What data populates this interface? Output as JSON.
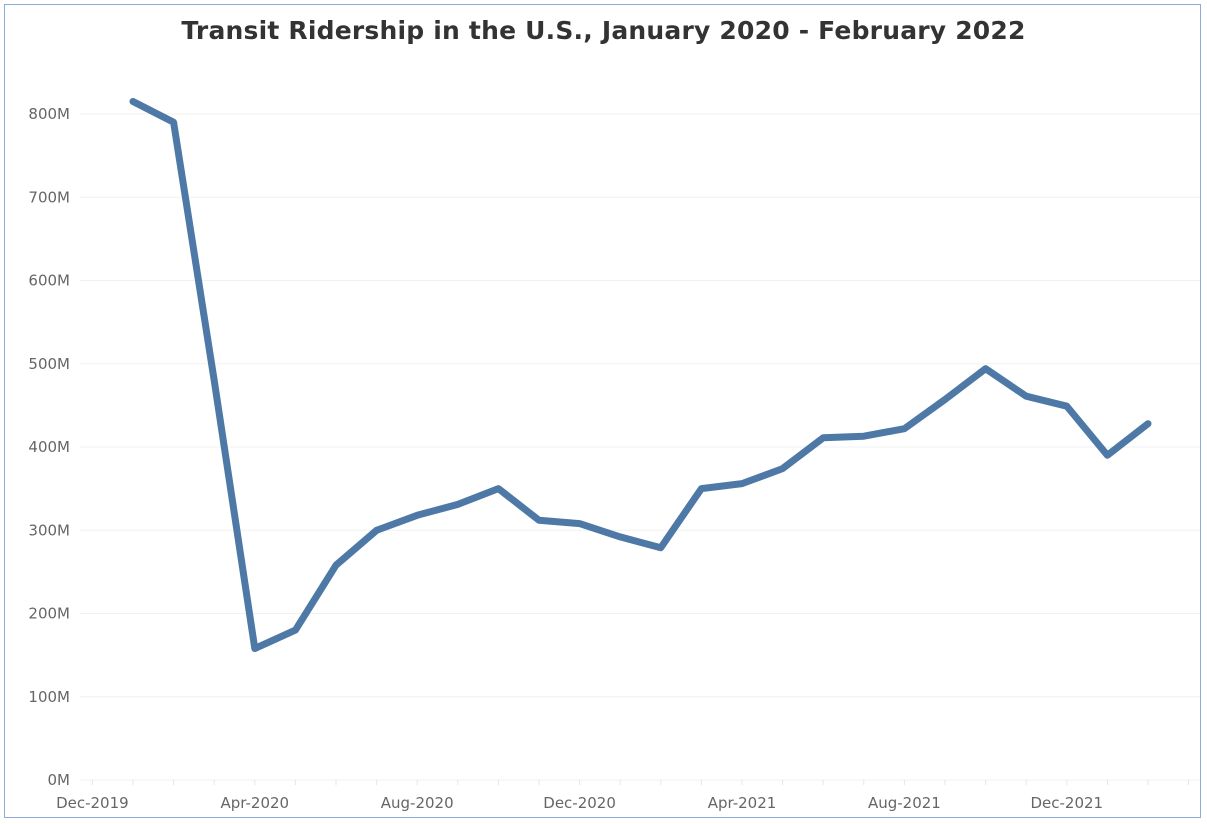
{
  "chart_data": {
    "type": "line",
    "title": "Transit Ridership in the U.S., January 2020 - February 2022",
    "xlabel": "",
    "ylabel": "",
    "ylim": [
      0,
      820000000
    ],
    "y_ticks": [
      "0M",
      "100M",
      "200M",
      "300M",
      "400M",
      "500M",
      "600M",
      "700M",
      "800M"
    ],
    "x_ticks": [
      "Dec-2019",
      "Apr-2020",
      "Aug-2020",
      "Dec-2020",
      "Apr-2021",
      "Aug-2021",
      "Dec-2021"
    ],
    "grid": "horizontal",
    "line_color": "#4e79a7",
    "series": [
      {
        "x": [
          "Jan-2020",
          "Feb-2020",
          "Mar-2020",
          "Apr-2020",
          "May-2020",
          "Jun-2020",
          "Jul-2020",
          "Aug-2020",
          "Sep-2020",
          "Oct-2020",
          "Nov-2020",
          "Dec-2020",
          "Jan-2021",
          "Feb-2021",
          "Mar-2021",
          "Apr-2021",
          "May-2021",
          "Jun-2021",
          "Jul-2021",
          "Aug-2021",
          "Sep-2021",
          "Oct-2021",
          "Nov-2021",
          "Dec-2021",
          "Jan-2022",
          "Feb-2022"
        ],
        "values": [
          815,
          790,
          480,
          158,
          180,
          258,
          300,
          318,
          331,
          350,
          312,
          308,
          292,
          279,
          350,
          356,
          374,
          411,
          413,
          422,
          457,
          494,
          461,
          449,
          390,
          428
        ],
        "unit": "M"
      }
    ]
  }
}
